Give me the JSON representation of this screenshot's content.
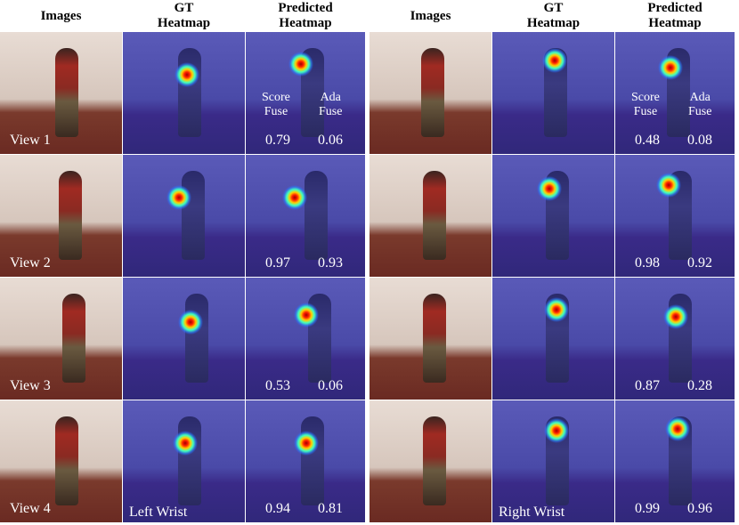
{
  "panels": [
    {
      "column_headers": [
        [
          "Images"
        ],
        [
          "GT",
          "Heatmap"
        ],
        [
          "Predicted",
          "Heatmap"
        ]
      ],
      "score_header": [
        "Score",
        "Fuse"
      ],
      "ada_header": [
        "Ada",
        "Fuse"
      ],
      "joint": "Left Wrist",
      "rows": [
        {
          "view": "View 1",
          "score": "0.79",
          "ada": "0.06"
        },
        {
          "view": "View 2",
          "score": "0.97",
          "ada": "0.93"
        },
        {
          "view": "View 3",
          "score": "0.53",
          "ada": "0.06"
        },
        {
          "view": "View 4",
          "score": "0.94",
          "ada": "0.81"
        }
      ]
    },
    {
      "column_headers": [
        [
          "Images"
        ],
        [
          "GT",
          "Heatmap"
        ],
        [
          "Predicted",
          "Heatmap"
        ]
      ],
      "score_header": [
        "Score",
        "Fuse"
      ],
      "ada_header": [
        "Ada",
        "Fuse"
      ],
      "joint": "Right Wrist",
      "rows": [
        {
          "score": "0.48",
          "ada": "0.08"
        },
        {
          "score": "0.98",
          "ada": "0.92"
        },
        {
          "score": "0.87",
          "ada": "0.28"
        },
        {
          "score": "0.99",
          "ada": "0.96"
        }
      ]
    }
  ]
}
